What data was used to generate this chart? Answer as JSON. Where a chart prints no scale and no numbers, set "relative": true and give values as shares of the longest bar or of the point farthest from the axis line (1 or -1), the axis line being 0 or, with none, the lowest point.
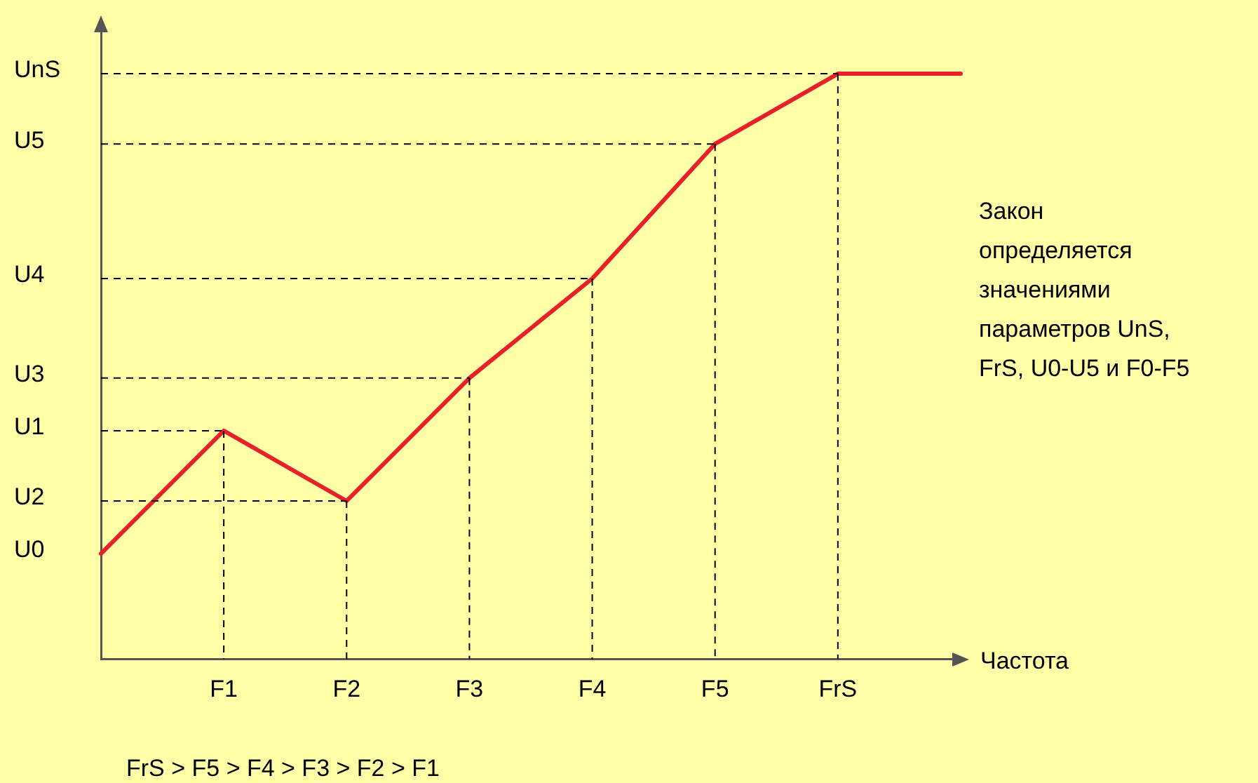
{
  "chart_data": {
    "type": "line",
    "xlabel": "Частота",
    "relative": true,
    "categories": [
      null,
      "F1",
      "F2",
      "F3",
      "F4",
      "F5",
      "FrS",
      null
    ],
    "series": [
      {
        "color": "#e8202a",
        "values": [
          0.18,
          0.39,
          0.27,
          0.48,
          0.65,
          0.88,
          1,
          1
        ]
      }
    ],
    "ref_lines": [
      {
        "axis": "y",
        "value": 0.27,
        "label": "U2",
        "line_style": "dashed"
      },
      {
        "axis": "y",
        "value": 0.39,
        "label": "U1",
        "line_style": "dashed"
      },
      {
        "axis": "y",
        "value": 0.48,
        "label": "U3",
        "line_style": "dashed"
      },
      {
        "axis": "y",
        "value": 0.65,
        "label": "U4",
        "line_style": "dashed"
      },
      {
        "axis": "y",
        "value": 0.88,
        "label": "U5",
        "line_style": "dashed"
      },
      {
        "axis": "x",
        "value": "F1",
        "line_style": "dashed"
      },
      {
        "axis": "x",
        "value": "F2",
        "line_style": "dashed"
      },
      {
        "axis": "x",
        "value": "F3",
        "line_style": "dashed"
      },
      {
        "axis": "x",
        "value": "F4",
        "line_style": "dashed"
      },
      {
        "axis": "x",
        "value": "F5",
        "line_style": "dashed"
      },
      {
        "axis": "x",
        "value": "FrS",
        "line_style": "dashed"
      }
    ],
    "grid": false,
    "legend": false,
    "marker": "none",
    "line_style": "solid",
    "annotations": [
      "U0",
      "UnS",
      "Закон\nопределяется\nзначениями\nпараметров UnS,\nFrS, U0-U5 и F0-F5",
      "FrS > F5 > F4 > F3 > F2 > F1"
    ]
  }
}
